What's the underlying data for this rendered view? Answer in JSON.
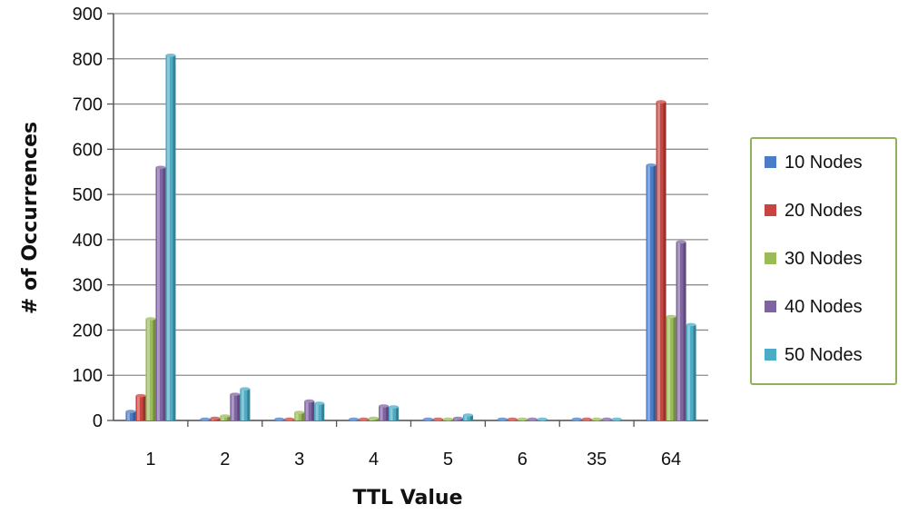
{
  "chart_data": {
    "type": "bar",
    "title": "",
    "xlabel": "TTL Value",
    "ylabel": "# of Occurrences",
    "categories": [
      "1",
      "2",
      "3",
      "4",
      "5",
      "6",
      "35",
      "64"
    ],
    "ylim": [
      0,
      900
    ],
    "yticks": [
      "0",
      "100",
      "200",
      "300",
      "400",
      "500",
      "600",
      "700",
      "800",
      "900"
    ],
    "grid": true,
    "legend_position": "right",
    "series": [
      {
        "name": "10 Nodes",
        "color": "#4a7cc7",
        "values": [
          20,
          3,
          2,
          2,
          2,
          1,
          1,
          565
        ]
      },
      {
        "name": "20 Nodes",
        "color": "#c8443f",
        "values": [
          55,
          5,
          3,
          3,
          2,
          1,
          1,
          705
        ]
      },
      {
        "name": "30 Nodes",
        "color": "#9bbb59",
        "values": [
          225,
          10,
          18,
          5,
          3,
          1,
          1,
          230
        ]
      },
      {
        "name": "40 Nodes",
        "color": "#8064a2",
        "values": [
          560,
          58,
          43,
          32,
          5,
          1,
          1,
          395
        ]
      },
      {
        "name": "50 Nodes",
        "color": "#4bacc6",
        "values": [
          808,
          70,
          38,
          30,
          12,
          2,
          2,
          212
        ]
      }
    ]
  }
}
